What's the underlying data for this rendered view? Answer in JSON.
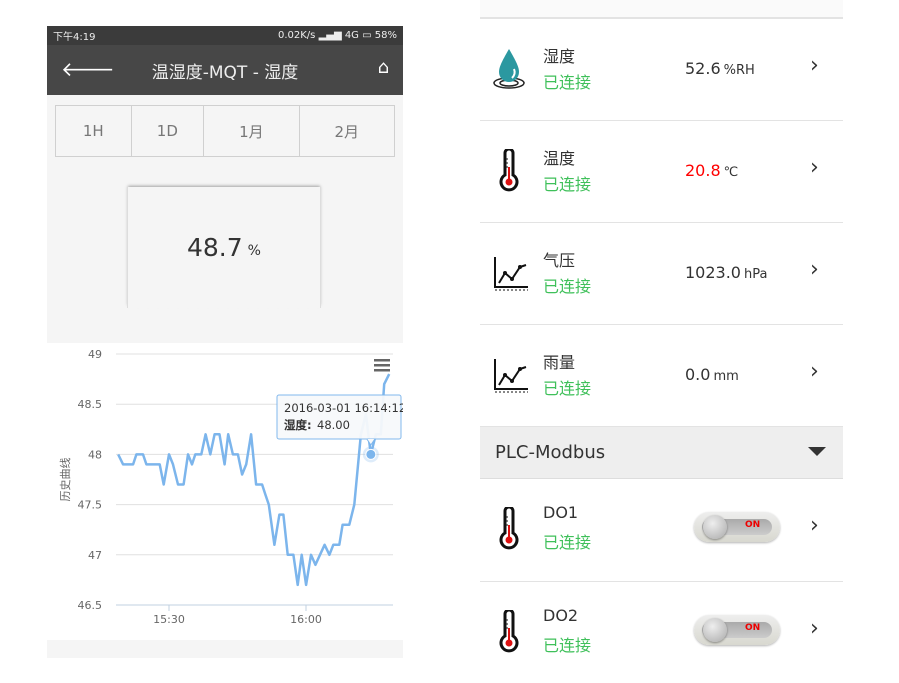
{
  "left_screen": {
    "status_bar": {
      "time": "下午4:19",
      "net_speed": "0.02K/s",
      "network": "4G",
      "battery": "58%"
    },
    "header": {
      "title": "温湿度-MQT - 湿度",
      "back_icon": "arrow-left-icon",
      "home_icon": "home-icon"
    },
    "range_tabs": [
      "1H",
      "1D",
      "1月",
      "2月"
    ],
    "current": {
      "value": "48.7",
      "unit": "%"
    },
    "tooltip": {
      "time": "2016-03-01 16:14:12",
      "label": "湿度:",
      "value": "48.00"
    },
    "menu_icon": "hamburger-menu-icon"
  },
  "chart_data": {
    "type": "line",
    "ylabel": "历史曲线",
    "xlabel": "",
    "ylim": [
      46.5,
      49
    ],
    "yticks": [
      "49",
      "48.5",
      "48",
      "47.5",
      "47",
      "46.5"
    ],
    "xticks": [
      "15:30",
      "16:00"
    ],
    "grid": true,
    "color": "#7cb5ec",
    "x": [
      "15:18:52",
      "15:19:57",
      "15:22:08",
      "15:22:52",
      "15:24:19",
      "15:25:03",
      "15:27:58",
      "15:28:50",
      "15:30:00",
      "15:30:52",
      "15:31:58",
      "15:33:12",
      "15:34:09",
      "15:35:02",
      "15:35:45",
      "15:37:04",
      "15:38:01",
      "15:39:02",
      "15:39:59",
      "15:41:04",
      "15:42:10",
      "15:42:58",
      "15:43:59",
      "15:45:05",
      "15:46:01",
      "15:46:54",
      "15:47:59",
      "15:49:05",
      "15:50:23",
      "15:51:07",
      "15:51:51",
      "15:53:05",
      "15:54:11",
      "15:55:03",
      "15:56:00",
      "15:57:14",
      "15:58:11",
      "15:59:04",
      "16:00:01",
      "16:01:06",
      "16:02:03",
      "16:04:05",
      "16:05:07",
      "16:05:59",
      "16:07:17",
      "16:08:01",
      "16:09:29",
      "16:10:34",
      "16:12:01",
      "16:13:07",
      "16:14:12",
      "16:15:18",
      "16:16:23",
      "16:17:07",
      "16:18:13"
    ],
    "y": [
      48.0,
      47.9,
      47.9,
      48.0,
      48.0,
      47.9,
      47.9,
      47.7,
      48.0,
      47.9,
      47.7,
      47.7,
      48.0,
      47.9,
      48.0,
      48.0,
      48.2,
      48.0,
      48.2,
      48.2,
      47.9,
      48.2,
      48.0,
      48.0,
      47.8,
      47.9,
      48.2,
      47.7,
      47.7,
      47.6,
      47.5,
      47.1,
      47.4,
      47.4,
      47.0,
      47.0,
      46.7,
      47.0,
      46.7,
      47.0,
      46.9,
      47.1,
      47.0,
      47.1,
      47.1,
      47.3,
      47.3,
      47.5,
      48.2,
      48.4,
      48.0,
      48.2,
      48.2,
      48.7,
      48.8
    ],
    "highlight": {
      "x": "16:14:12",
      "y": 48.0
    }
  },
  "right_screen": {
    "sensors": [
      {
        "name": "湿度",
        "status": "已连接",
        "value": "52.6",
        "unit": "%RH",
        "icon": "water-drop-icon",
        "value_color": "#333333"
      },
      {
        "name": "温度",
        "status": "已连接",
        "value": "20.8",
        "unit": "℃",
        "icon": "thermometer-icon",
        "value_color": "#ff0000"
      },
      {
        "name": "气压",
        "status": "已连接",
        "value": "1023.0",
        "unit": "hPa",
        "icon": "line-chart-icon",
        "value_color": "#333333"
      },
      {
        "name": "雨量",
        "status": "已连接",
        "value": "0.0",
        "unit": "mm",
        "icon": "line-chart-icon",
        "value_color": "#333333"
      }
    ],
    "group": {
      "title": "PLC-Modbus"
    },
    "outputs": [
      {
        "name": "DO1",
        "status": "已连接",
        "switch_label": "ON",
        "icon": "thermometer-icon"
      },
      {
        "name": "DO2",
        "status": "已连接",
        "switch_label": "ON",
        "icon": "thermometer-icon"
      }
    ],
    "status_color": "#3fc05a"
  }
}
